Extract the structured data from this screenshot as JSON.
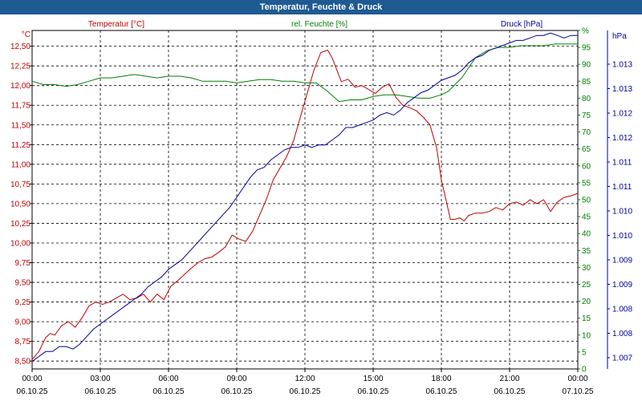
{
  "window": {
    "title": "Temperatur, Feuchte & Druck"
  },
  "chart_data": {
    "type": "line",
    "title": "Temperatur, Feuchte & Druck",
    "colors": {
      "temperature": "#c00000",
      "humidity": "#008000",
      "pressure": "#000099"
    },
    "axes": {
      "temperature": {
        "label": "Temperatur [°C]",
        "unit": "°C",
        "range": [
          8.4,
          12.7
        ],
        "ticks": [
          "12,50",
          "12,25",
          "12,00",
          "11,75",
          "11,50",
          "11,25",
          "11,00",
          "10,75",
          "10,50",
          "10,25",
          "10,00",
          "9,75",
          "9,50",
          "9,25",
          "9,00",
          "8,75",
          "8,50"
        ]
      },
      "humidity": {
        "label": "rel. Feuchte [%]",
        "unit": "%",
        "range": [
          0,
          100
        ],
        "ticks": [
          "0",
          "5",
          "10",
          "15",
          "20",
          "25",
          "30",
          "35",
          "40",
          "45",
          "50",
          "55",
          "60",
          "65",
          "70",
          "75",
          "80",
          "85",
          "90",
          "95",
          "%"
        ]
      },
      "pressure": {
        "label": "Druck [hPa]",
        "unit": "hPa",
        "range": [
          1006.6,
          1013.4
        ],
        "ticks": [
          "1.007",
          "1.008",
          "1.008",
          "1.009",
          "1.009",
          "1.010",
          "1.010",
          "1.011",
          "1.011",
          "1.012",
          "1.012",
          "1.013",
          "1.013"
        ]
      }
    },
    "x_ticks": [
      {
        "time": "00:00",
        "date": "06.10.25"
      },
      {
        "time": "03:00",
        "date": "06.10.25"
      },
      {
        "time": "06:00",
        "date": "06.10.25"
      },
      {
        "time": "09:00",
        "date": "06.10.25"
      },
      {
        "time": "12:00",
        "date": "06.10.25"
      },
      {
        "time": "15:00",
        "date": "06.10.25"
      },
      {
        "time": "18:00",
        "date": "06.10.25"
      },
      {
        "time": "21:00",
        "date": "06.10.25"
      },
      {
        "time": "00:00",
        "date": "07.10.25"
      }
    ],
    "x_range_hours": [
      0,
      24
    ],
    "grid": true,
    "series": [
      {
        "name": "Temperatur",
        "unit": "°C",
        "color_key": "temperature",
        "x": [
          0,
          0.3,
          0.6,
          0.8,
          1.0,
          1.3,
          1.6,
          1.9,
          2.2,
          2.5,
          2.8,
          3.1,
          3.4,
          3.7,
          4.0,
          4.3,
          4.6,
          4.9,
          5.2,
          5.5,
          5.8,
          6.1,
          6.4,
          6.7,
          7.0,
          7.3,
          7.6,
          7.9,
          8.2,
          8.5,
          8.8,
          9.1,
          9.4,
          9.7,
          10.0,
          10.3,
          10.6,
          10.9,
          11.2,
          11.5,
          11.8,
          12.1,
          12.4,
          12.7,
          13.0,
          13.2,
          13.4,
          13.6,
          13.9,
          14.2,
          14.5,
          14.8,
          15.1,
          15.4,
          15.7,
          16.0,
          16.3,
          16.6,
          16.9,
          17.2,
          17.5,
          17.8,
          18.0,
          18.2,
          18.4,
          18.6,
          18.8,
          19.0,
          19.2,
          19.5,
          19.8,
          20.1,
          20.4,
          20.7,
          21.0,
          21.3,
          21.6,
          21.9,
          22.2,
          22.5,
          22.8,
          23.1,
          23.4,
          23.7,
          24.0
        ],
        "values": [
          8.52,
          8.62,
          8.8,
          8.85,
          8.83,
          8.95,
          9.0,
          8.93,
          9.05,
          9.2,
          9.25,
          9.22,
          9.25,
          9.3,
          9.35,
          9.28,
          9.3,
          9.35,
          9.25,
          9.35,
          9.28,
          9.45,
          9.52,
          9.6,
          9.68,
          9.75,
          9.8,
          9.82,
          9.88,
          9.95,
          10.1,
          10.05,
          10.02,
          10.15,
          10.35,
          10.55,
          10.8,
          10.95,
          11.1,
          11.3,
          11.6,
          11.9,
          12.2,
          12.42,
          12.45,
          12.35,
          12.2,
          12.05,
          12.08,
          11.98,
          12.0,
          11.95,
          11.9,
          11.98,
          12.02,
          11.85,
          11.75,
          11.72,
          11.68,
          11.6,
          11.5,
          11.2,
          10.8,
          10.55,
          10.3,
          10.3,
          10.32,
          10.28,
          10.35,
          10.38,
          10.38,
          10.4,
          10.45,
          10.42,
          10.5,
          10.52,
          10.48,
          10.55,
          10.5,
          10.55,
          10.4,
          10.52,
          10.58,
          10.6,
          10.63
        ]
      },
      {
        "name": "rel. Feuchte",
        "unit": "%",
        "color_key": "humidity",
        "x": [
          0,
          0.5,
          1.0,
          1.5,
          2.0,
          2.5,
          3.0,
          3.5,
          4.0,
          4.5,
          5.0,
          5.5,
          6.0,
          6.5,
          7.0,
          7.5,
          8.0,
          8.5,
          9.0,
          9.5,
          10.0,
          10.5,
          11.0,
          11.5,
          12.0,
          12.5,
          13.0,
          13.5,
          14.0,
          14.5,
          15.0,
          15.5,
          16.0,
          16.5,
          17.0,
          17.5,
          18.0,
          18.3,
          18.6,
          18.9,
          19.2,
          19.5,
          20.0,
          20.5,
          21.0,
          21.5,
          22.0,
          22.5,
          23.0,
          23.5,
          24.0
        ],
        "values": [
          85,
          84,
          84,
          83.5,
          84,
          85,
          86,
          86,
          86.5,
          87,
          86.5,
          86,
          86.5,
          86.5,
          86,
          85,
          85,
          85,
          84.5,
          85,
          85.5,
          85.5,
          85,
          85,
          84.5,
          84.5,
          82,
          79,
          79.5,
          79.5,
          80.5,
          81,
          81,
          80.5,
          80,
          80,
          81,
          82,
          84,
          86,
          89,
          92,
          94,
          95,
          95,
          95.5,
          95.5,
          95.5,
          96,
          96,
          96
        ]
      },
      {
        "name": "Druck",
        "unit": "hPa",
        "color_key": "pressure",
        "x": [
          0,
          0.3,
          0.6,
          0.9,
          1.2,
          1.5,
          1.8,
          2.1,
          2.4,
          2.7,
          3.0,
          3.3,
          3.6,
          3.9,
          4.2,
          4.5,
          4.8,
          5.1,
          5.4,
          5.7,
          6.0,
          6.3,
          6.6,
          6.9,
          7.2,
          7.5,
          7.8,
          8.1,
          8.4,
          8.7,
          9.0,
          9.3,
          9.6,
          9.9,
          10.2,
          10.5,
          10.8,
          11.1,
          11.4,
          11.7,
          12.0,
          12.3,
          12.6,
          12.9,
          13.2,
          13.5,
          13.8,
          14.1,
          14.4,
          14.7,
          15.0,
          15.3,
          15.6,
          15.9,
          16.2,
          16.5,
          16.8,
          17.1,
          17.4,
          17.7,
          18.0,
          18.3,
          18.6,
          18.9,
          19.2,
          19.5,
          19.8,
          20.1,
          20.4,
          20.7,
          21.0,
          21.3,
          21.6,
          21.9,
          22.2,
          22.5,
          22.8,
          23.1,
          23.4,
          23.7,
          24.0
        ],
        "values": [
          1006.75,
          1006.85,
          1006.95,
          1006.95,
          1007.05,
          1007.05,
          1007.0,
          1007.1,
          1007.25,
          1007.4,
          1007.5,
          1007.6,
          1007.7,
          1007.8,
          1007.9,
          1008.0,
          1008.1,
          1008.25,
          1008.35,
          1008.45,
          1008.6,
          1008.7,
          1008.8,
          1008.95,
          1009.1,
          1009.25,
          1009.4,
          1009.55,
          1009.7,
          1009.85,
          1010.05,
          1010.25,
          1010.45,
          1010.6,
          1010.65,
          1010.8,
          1010.9,
          1011.0,
          1011.05,
          1011.05,
          1011.1,
          1011.05,
          1011.1,
          1011.1,
          1011.2,
          1011.3,
          1011.45,
          1011.45,
          1011.5,
          1011.55,
          1011.6,
          1011.7,
          1011.75,
          1011.7,
          1011.8,
          1011.95,
          1012.05,
          1012.15,
          1012.2,
          1012.3,
          1012.4,
          1012.45,
          1012.5,
          1012.6,
          1012.75,
          1012.85,
          1012.9,
          1013.0,
          1013.05,
          1013.1,
          1013.15,
          1013.2,
          1013.2,
          1013.25,
          1013.3,
          1013.3,
          1013.35,
          1013.3,
          1013.25,
          1013.3,
          1013.3
        ]
      }
    ]
  }
}
